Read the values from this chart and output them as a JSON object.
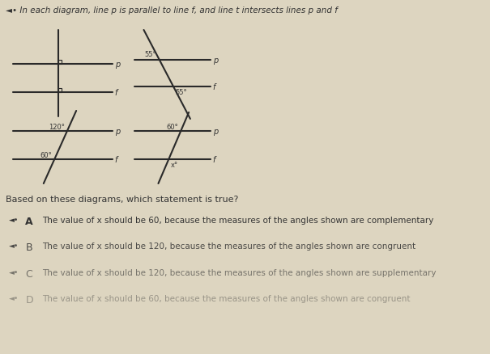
{
  "bg_color": "#ddd5c0",
  "line_color": "#2a2a2a",
  "text_color": "#333333",
  "title": "◄• In each diagram, line p is parallel to line f, and line t intersects lines p and f",
  "question": "Based on these diagrams, which statement is true?",
  "options": [
    {
      "label": "A",
      "text": "The value of x should be 60, because the measures of the angles shown are complementary",
      "alpha": 1.0,
      "bold": true
    },
    {
      "label": "B",
      "text": "The value of x should be 120, because the measures of the angles shown are congruent",
      "alpha": 0.85,
      "bold": false
    },
    {
      "label": "C",
      "text": "The value of x should be 120, because the measures of the angles shown are supplementary",
      "alpha": 0.6,
      "bold": false
    },
    {
      "label": "D",
      "text": "The value of x should be 60, because the measures of the angles shown are congruent",
      "alpha": 0.4,
      "bold": false
    }
  ],
  "title_fontsize": 7.5,
  "question_fontsize": 8,
  "option_label_fontsize": 9,
  "option_text_fontsize": 7.5,
  "line_lw": 1.5,
  "label_fontsize": 7
}
